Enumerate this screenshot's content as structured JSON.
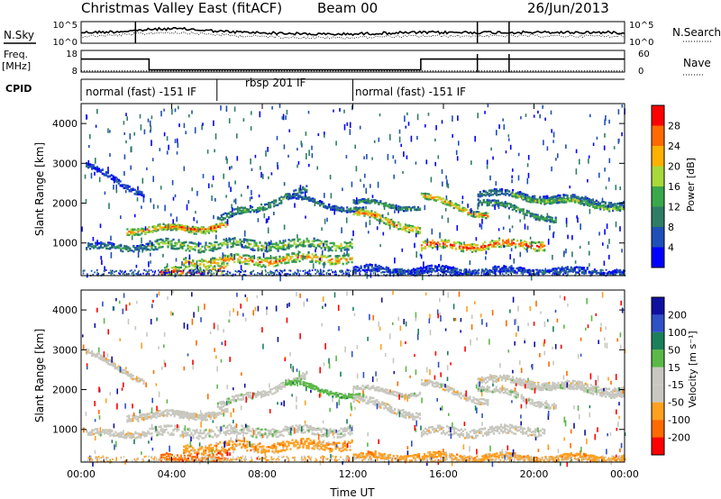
{
  "header": {
    "title": "Christmas Valley East (fitACF)",
    "beam": "Beam 00",
    "date": "26/Jun/2013"
  },
  "labels": {
    "nsky": "N.Sky",
    "nsearch": "N.Search",
    "freq": "Freq.",
    "freq_unit": "[MHz]",
    "nave": "Nave",
    "cpid": "CPID",
    "ylabel": "Slant Range [km]",
    "xlabel": "Time UT",
    "power_label": "Power [dB]",
    "velocity_label": "Velocity [m s⁻¹]"
  },
  "colors": {
    "power": [
      "#0000ff",
      "#1f4fb8",
      "#2e7d64",
      "#3aa84a",
      "#a8d83a",
      "#ffb000",
      "#ff6a00",
      "#ff0000"
    ],
    "velocity": [
      "#ff0000",
      "#ff6a00",
      "#ffa020",
      "#c8c8c0",
      "#c8c8c0",
      "#5ab946",
      "#1a7f5a",
      "#3050c8",
      "#1010a0"
    ]
  },
  "chart_data": [
    {
      "type": "line",
      "name": "noise-panel",
      "series": [
        {
          "name": "N.Sky"
        },
        {
          "name": "N.Search"
        }
      ],
      "yticks_left": [
        "10^5",
        "10^0"
      ],
      "yticks_right": [
        "10^5",
        "10^0"
      ]
    },
    {
      "type": "line",
      "name": "freq-panel",
      "series": [
        {
          "name": "Freq."
        },
        {
          "name": "Nave"
        }
      ],
      "yticks_left": [
        "18",
        "8"
      ],
      "yticks_right": [
        "60",
        "0"
      ],
      "freq_steps": [
        {
          "t": 0,
          "v": 14
        },
        {
          "t": 3.0,
          "v": 9
        },
        {
          "t": 15.0,
          "v": 14
        },
        {
          "t": 24.0,
          "v": 14
        }
      ],
      "nave_level": 3
    },
    {
      "type": "table",
      "name": "cpid-bar",
      "segments": [
        {
          "start": 0,
          "end": 6,
          "label": "normal (fast) -151 IF"
        },
        {
          "start": 6,
          "end": 12,
          "label": "rbsp 201 IF"
        },
        {
          "start": 12,
          "end": 24,
          "label": "normal (fast) -151 IF"
        }
      ]
    },
    {
      "type": "heatmap",
      "name": "power",
      "xlim": [
        0,
        24
      ],
      "ylim": [
        180,
        4500
      ],
      "xticks": [
        "00:00",
        "04:00",
        "08:00",
        "12:00",
        "16:00",
        "20:00",
        "00:00"
      ],
      "yticks": [
        1000,
        2000,
        3000,
        4000
      ],
      "colorbar": {
        "label": "Power [dB]",
        "ticks": [
          "4",
          "8",
          "12",
          "16",
          "20",
          "24",
          "28"
        ],
        "range": [
          0,
          30
        ]
      }
    },
    {
      "type": "heatmap",
      "name": "velocity",
      "xlim": [
        0,
        24
      ],
      "ylim": [
        180,
        4500
      ],
      "xticks": [
        "00:00",
        "04:00",
        "08:00",
        "12:00",
        "16:00",
        "20:00",
        "00:00"
      ],
      "yticks": [
        1000,
        2000,
        3000,
        4000
      ],
      "colorbar": {
        "label": "Velocity [m s⁻¹]",
        "ticks": [
          "200",
          "100",
          "50",
          "15",
          "-15",
          "-50",
          "-100",
          "-200"
        ]
      }
    }
  ]
}
